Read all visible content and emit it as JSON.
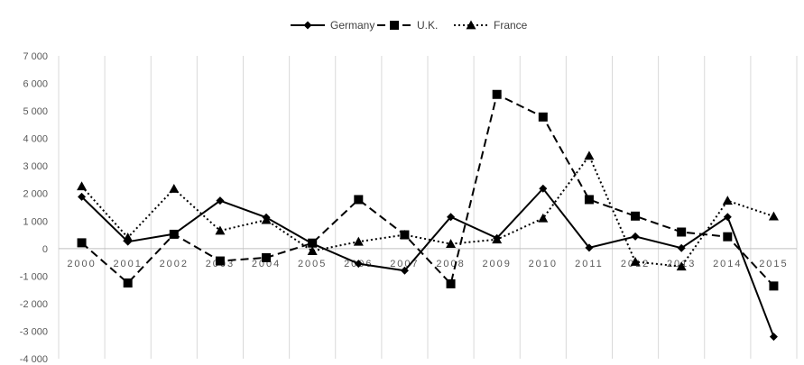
{
  "chart_data": {
    "type": "line",
    "categories": [
      "2000",
      "2001",
      "2002",
      "2003",
      "2004",
      "2005",
      "2006",
      "2007",
      "2008",
      "2009",
      "2010",
      "2011",
      "2012",
      "2013",
      "2014",
      "2015"
    ],
    "series": [
      {
        "name": "Germany",
        "marker": "diamond",
        "dash": "solid",
        "color": "#000000",
        "values": [
          1880,
          250,
          530,
          1740,
          1130,
          180,
          -550,
          -800,
          1150,
          380,
          2180,
          30,
          440,
          20,
          1150,
          -3200
        ]
      },
      {
        "name": "U.K.",
        "marker": "square",
        "dash": "dashed",
        "color": "#000000",
        "values": [
          210,
          -1250,
          520,
          -450,
          -330,
          200,
          1780,
          500,
          -1280,
          5600,
          4780,
          1780,
          1180,
          600,
          430,
          -1360
        ]
      },
      {
        "name": "France",
        "marker": "triangle",
        "dash": "dotted",
        "color": "#000000",
        "values": [
          2260,
          400,
          2170,
          650,
          1040,
          -90,
          250,
          500,
          170,
          330,
          1100,
          3370,
          -480,
          -650,
          1740,
          1170
        ]
      }
    ],
    "y_ticks": [
      "-4 000",
      "-3 000",
      "-2 000",
      "-1 000",
      "0",
      "1 000",
      "2 000",
      "3 000",
      "4 000",
      "5 000",
      "6 000",
      "7 000"
    ],
    "ylim": [
      -4000,
      7000
    ],
    "legend_position": "top",
    "grid": "vertical",
    "title": "",
    "xlabel": "",
    "ylabel": ""
  }
}
